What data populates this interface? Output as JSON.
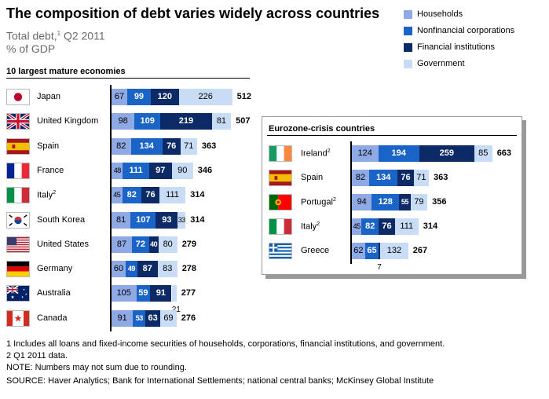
{
  "title": "The composition of debt varies widely across countries",
  "subtitle_main": "Total debt,",
  "subtitle_sup": "1",
  "subtitle_period": " Q2 2011",
  "subtitle_unit": "% of GDP",
  "colors": {
    "households": "#8ea9e3",
    "nonfinancial_corporations": "#1a64c8",
    "financial_institutions": "#0c2a66",
    "government": "#c9dcf5"
  },
  "legend": [
    {
      "key": "households",
      "label": "Households"
    },
    {
      "key": "nonfinancial_corporations",
      "label": "Nonfinancial corporations"
    },
    {
      "key": "financial_institutions",
      "label": "Financial institutions"
    },
    {
      "key": "government",
      "label": "Government"
    }
  ],
  "chart_data": [
    {
      "type": "bar",
      "orientation": "horizontal",
      "stacked": true,
      "title": "10 largest mature economies",
      "categories": [
        "Japan",
        "United Kingdom",
        "Spain",
        "France",
        "Italy",
        "South Korea",
        "United States",
        "Germany",
        "Australia",
        "Canada"
      ],
      "category_sups": [
        "",
        "",
        "",
        "",
        "2",
        "",
        "",
        "",
        "",
        ""
      ],
      "flags": [
        "japan",
        "uk",
        "spain",
        "france",
        "italy",
        "south-korea",
        "usa",
        "germany",
        "australia",
        "canada"
      ],
      "series": [
        {
          "name": "Households",
          "values": [
            67,
            98,
            82,
            48,
            45,
            81,
            87,
            60,
            105,
            91
          ]
        },
        {
          "name": "Nonfinancial corporations",
          "values": [
            99,
            109,
            134,
            111,
            82,
            107,
            72,
            49,
            59,
            53
          ]
        },
        {
          "name": "Financial institutions",
          "values": [
            120,
            219,
            76,
            97,
            76,
            93,
            40,
            87,
            91,
            63
          ]
        },
        {
          "name": "Government",
          "values": [
            226,
            81,
            71,
            90,
            111,
            33,
            80,
            83,
            21,
            69
          ]
        }
      ],
      "totals": [
        512,
        507,
        363,
        346,
        314,
        314,
        279,
        278,
        277,
        276
      ]
    },
    {
      "type": "bar",
      "orientation": "horizontal",
      "stacked": true,
      "title": "Eurozone-crisis countries",
      "categories": [
        "Ireland",
        "Spain",
        "Portugal",
        "Italy",
        "Greece"
      ],
      "category_sups": [
        "2",
        "",
        "2",
        "2",
        ""
      ],
      "flags": [
        "ireland",
        "spain",
        "portugal",
        "italy",
        "greece"
      ],
      "series": [
        {
          "name": "Households",
          "values": [
            124,
            82,
            94,
            45,
            62
          ]
        },
        {
          "name": "Nonfinancial corporations",
          "values": [
            194,
            134,
            128,
            82,
            65
          ]
        },
        {
          "name": "Financial institutions",
          "values": [
            259,
            76,
            55,
            76,
            7
          ]
        },
        {
          "name": "Government",
          "values": [
            85,
            71,
            79,
            111,
            132
          ]
        }
      ],
      "totals": [
        663,
        363,
        356,
        314,
        267
      ]
    }
  ],
  "footnotes": [
    "1  Includes all loans and fixed-income securities of households, corporations, financial institutions, and government.",
    "2  Q1 2011 data.",
    "NOTE: Numbers may not sum due to rounding.",
    "SOURCE: Haver Analytics; Bank for International Settlements; national central banks; McKinsey Global Institute"
  ]
}
